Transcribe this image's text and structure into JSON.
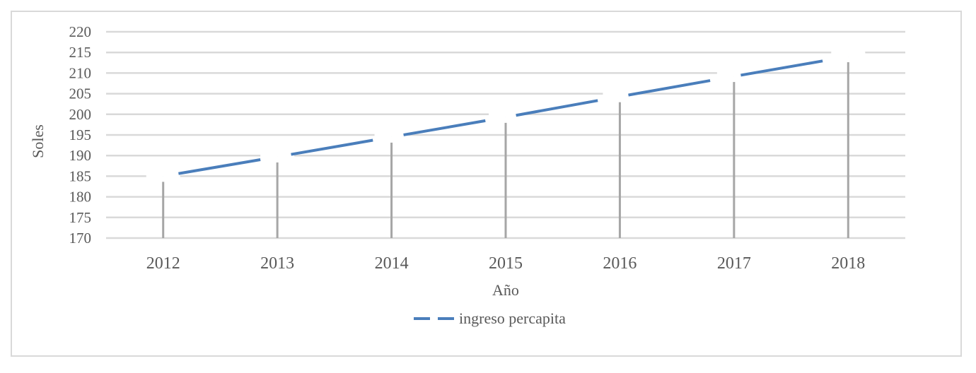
{
  "chart_data": {
    "type": "line",
    "title": "",
    "xlabel": "Año",
    "ylabel": "Soles",
    "categories": [
      "2012",
      "2013",
      "2014",
      "2015",
      "2016",
      "2017",
      "2018"
    ],
    "series": [
      {
        "name": "ingreso percapita",
        "values": [
          185,
          189.7,
          194.5,
          199.3,
          204.3,
          209.2,
          214
        ],
        "color": "#4a7ebb",
        "style": "dashed"
      }
    ],
    "ylim": [
      170,
      220
    ],
    "yticks": [
      "220",
      "215",
      "210",
      "205",
      "200",
      "195",
      "190",
      "185",
      "180",
      "175",
      "170"
    ],
    "grid": true,
    "legend": "bottom",
    "drop_lines": true,
    "grid_color": "#d9d9d9",
    "drop_line_color": "#a6a6a6"
  }
}
